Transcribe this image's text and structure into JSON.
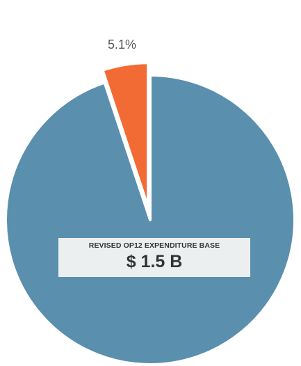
{
  "chart_data": {
    "type": "pie",
    "slices": [
      {
        "value": 94.9,
        "color": "#5a8fae",
        "label": "",
        "exploded": false
      },
      {
        "value": 5.1,
        "color": "#f26b35",
        "label": "5.1%",
        "exploded": true
      }
    ],
    "start_angle_deg": 0,
    "direction": "clockwise"
  },
  "center_box": {
    "subtitle": "REVISED OP12 EXPENDITURE BASE",
    "value": "$ 1.5 B"
  }
}
